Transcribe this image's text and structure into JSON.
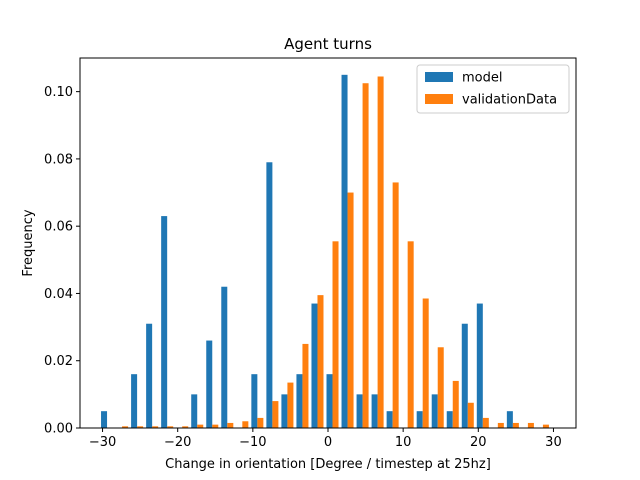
{
  "chart_data": {
    "type": "bar",
    "title": "Agent turns",
    "xlabel": "Change in orientation [Degree / timestep at 25hz]",
    "ylabel": "Frequency",
    "xlim": [
      -33,
      33
    ],
    "ylim": [
      0,
      0.11
    ],
    "xticks": [
      -30,
      -20,
      -10,
      0,
      10,
      20,
      30
    ],
    "yticks": [
      0.0,
      0.02,
      0.04,
      0.06,
      0.08,
      0.1
    ],
    "ytick_labels": [
      "0.00",
      "0.02",
      "0.04",
      "0.06",
      "0.08",
      "0.10"
    ],
    "bin_width": 2.0,
    "x": [
      -29.4,
      -27.4,
      -25.4,
      -23.4,
      -21.4,
      -19.4,
      -17.4,
      -15.4,
      -13.4,
      -11.4,
      -9.4,
      -7.4,
      -5.4,
      -3.4,
      -1.4,
      0.6,
      2.6,
      4.6,
      6.6,
      8.6,
      10.6,
      12.6,
      14.6,
      16.6,
      18.6,
      20.6,
      22.6,
      24.6,
      26.6,
      28.6
    ],
    "series": [
      {
        "name": "model",
        "color": "#1f77b4",
        "values": [
          0.005,
          0.0,
          0.016,
          0.031,
          0.063,
          0.0,
          0.01,
          0.026,
          0.042,
          0.0,
          0.016,
          0.079,
          0.01,
          0.016,
          0.037,
          0.016,
          0.105,
          0.01,
          0.01,
          0.005,
          0.0,
          0.005,
          0.01,
          0.005,
          0.031,
          0.037,
          0.0,
          0.005,
          0.0,
          0.0
        ]
      },
      {
        "name": "validationData",
        "color": "#ff7f0e",
        "values": [
          0.0,
          0.0005,
          0.0005,
          0.0005,
          0.0005,
          0.0005,
          0.001,
          0.001,
          0.0015,
          0.002,
          0.003,
          0.008,
          0.0135,
          0.025,
          0.0395,
          0.0555,
          0.07,
          0.1025,
          0.1045,
          0.073,
          0.0555,
          0.0385,
          0.024,
          0.014,
          0.0075,
          0.003,
          0.0015,
          0.0015,
          0.0015,
          0.001
        ]
      }
    ],
    "legend": {
      "position": "top-right"
    },
    "grid": false
  }
}
